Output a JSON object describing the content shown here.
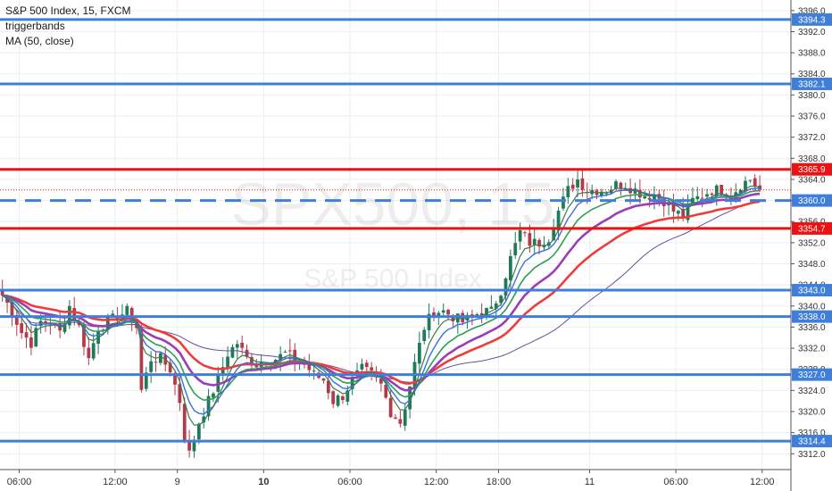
{
  "legend": {
    "symbol_line": "S&P 500 Index, 15, FXCM",
    "indicator_1": "triggerbands",
    "indicator_2": "MA (50, close)"
  },
  "watermark": {
    "symbol": "SPX500, 15",
    "description": "S&P 500 Index"
  },
  "colors": {
    "up_candle": "#1f7a5a",
    "down_candle": "#b33a4a",
    "support_blue": "#3f7fd9",
    "resistance_red": "#ee1111",
    "ema_blue": "#3b6fe0",
    "ema_green": "#2e9e55",
    "ema_purple": "#9b3cb8",
    "ema_red": "#ef3b3b",
    "ma50": "#6a4f9a",
    "ema_dark_green": "#3d7a4a",
    "ema_grey": "#8a8a8a"
  },
  "chart_data": {
    "type": "candlestick",
    "title": "S&P 500 Index, 15, FXCM",
    "y_axis_position": "right",
    "ylim": [
      3309,
      3398
    ],
    "y_ticks": [
      3312,
      3316,
      3320,
      3324,
      3328,
      3332,
      3336,
      3340,
      3344,
      3348,
      3352,
      3356,
      3360,
      3364,
      3368,
      3372,
      3376,
      3380,
      3384,
      3388,
      3392,
      3396
    ],
    "y_tick_labels": [
      "3312.0",
      "3316.0",
      "3320.0",
      "3324.0",
      "3328.0",
      "3332.0",
      "3336.0",
      "3340.0",
      "3344.0",
      "3348.0",
      "3352.0",
      "3356.0",
      "3360.0",
      "3364.0",
      "3368.0",
      "3372.0",
      "3376.0",
      "3380.0",
      "3384.0",
      "3388.0",
      "3392.0",
      "3396.0"
    ],
    "x_range_bars": [
      0,
      165
    ],
    "x_ticks": [
      {
        "bar": 4,
        "label": "06:00"
      },
      {
        "bar": 24,
        "label": "12:00"
      },
      {
        "bar": 37,
        "label": "9"
      },
      {
        "bar": 55,
        "label": "10"
      },
      {
        "bar": 73,
        "label": "06:00"
      },
      {
        "bar": 91,
        "label": "12:00"
      },
      {
        "bar": 104,
        "label": "18:00"
      },
      {
        "bar": 123,
        "label": "11"
      },
      {
        "bar": 141,
        "label": "06:00"
      },
      {
        "bar": 159,
        "label": "12:00"
      }
    ],
    "grid": true,
    "horizontal_levels": [
      {
        "value": 3394.3,
        "label": "3394.3",
        "color": "#3f7fd9",
        "style": "solid"
      },
      {
        "value": 3382.1,
        "label": "3382.1",
        "color": "#3f7fd9",
        "style": "solid"
      },
      {
        "value": 3365.9,
        "label": "3365.9",
        "color": "#ee1111",
        "style": "solid"
      },
      {
        "value": 3360.0,
        "label": "3360.0",
        "color": "#3f7fd9",
        "style": "dashed"
      },
      {
        "value": 3354.7,
        "label": "3354.7",
        "color": "#ee1111",
        "style": "solid"
      },
      {
        "value": 3343.0,
        "label": "3343.0",
        "color": "#3f7fd9",
        "style": "solid"
      },
      {
        "value": 3338.0,
        "label": "3338.0",
        "color": "#3f7fd9",
        "style": "solid"
      },
      {
        "value": 3327.0,
        "label": "3327.0",
        "color": "#3f7fd9",
        "style": "solid"
      },
      {
        "value": 3314.4,
        "label": "3314.4",
        "color": "#3f7fd9",
        "style": "solid"
      }
    ],
    "last_price": 3362.0,
    "close_keypoints": [
      [
        0,
        3342
      ],
      [
        2,
        3339
      ],
      [
        4,
        3335
      ],
      [
        6,
        3333
      ],
      [
        8,
        3337
      ],
      [
        10,
        3337
      ],
      [
        12,
        3335
      ],
      [
        14,
        3340
      ],
      [
        16,
        3336
      ],
      [
        18,
        3330
      ],
      [
        20,
        3336
      ],
      [
        22,
        3337
      ],
      [
        24,
        3338
      ],
      [
        26,
        3339
      ],
      [
        28,
        3336
      ],
      [
        29,
        3324
      ],
      [
        31,
        3330
      ],
      [
        33,
        3330
      ],
      [
        35,
        3328
      ],
      [
        37,
        3322
      ],
      [
        38,
        3315
      ],
      [
        39,
        3312
      ],
      [
        41,
        3318
      ],
      [
        43,
        3322
      ],
      [
        45,
        3326
      ],
      [
        47,
        3331
      ],
      [
        49,
        3333
      ],
      [
        51,
        3330
      ],
      [
        53,
        3329
      ],
      [
        55,
        3330
      ],
      [
        57,
        3330
      ],
      [
        59,
        3331
      ],
      [
        61,
        3330
      ],
      [
        63,
        3329
      ],
      [
        65,
        3327
      ],
      [
        67,
        3326
      ],
      [
        69,
        3322
      ],
      [
        71,
        3323
      ],
      [
        73,
        3326
      ],
      [
        75,
        3328
      ],
      [
        77,
        3327
      ],
      [
        79,
        3325
      ],
      [
        81,
        3320
      ],
      [
        83,
        3318
      ],
      [
        84,
        3321
      ],
      [
        86,
        3329
      ],
      [
        88,
        3336
      ],
      [
        90,
        3339
      ],
      [
        92,
        3339
      ],
      [
        94,
        3338
      ],
      [
        96,
        3337
      ],
      [
        98,
        3338
      ],
      [
        100,
        3339
      ],
      [
        102,
        3339
      ],
      [
        104,
        3343
      ],
      [
        106,
        3349
      ],
      [
        108,
        3354
      ],
      [
        110,
        3352
      ],
      [
        112,
        3352
      ],
      [
        114,
        3353
      ],
      [
        116,
        3358
      ],
      [
        118,
        3362
      ],
      [
        120,
        3364
      ],
      [
        122,
        3362
      ],
      [
        124,
        3362
      ],
      [
        126,
        3362
      ],
      [
        128,
        3363
      ],
      [
        130,
        3363
      ],
      [
        132,
        3362
      ],
      [
        134,
        3361
      ],
      [
        136,
        3361
      ],
      [
        138,
        3360
      ],
      [
        140,
        3358
      ],
      [
        142,
        3357
      ],
      [
        144,
        3360
      ],
      [
        146,
        3361
      ],
      [
        148,
        3362
      ],
      [
        150,
        3362
      ],
      [
        152,
        3361
      ],
      [
        154,
        3363
      ],
      [
        156,
        3364
      ],
      [
        158,
        3362
      ]
    ],
    "series": [
      {
        "name": "MA (50, close)",
        "type": "sma",
        "period": 50,
        "color": "#6a4f9a"
      }
    ]
  }
}
